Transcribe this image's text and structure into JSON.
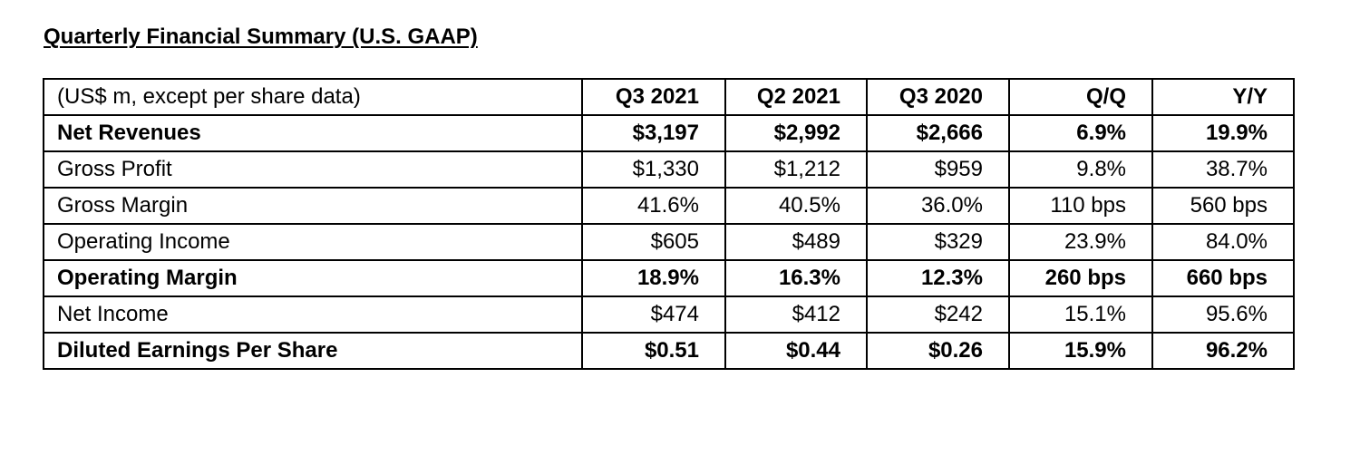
{
  "title": "Quarterly Financial Summary (U.S. GAAP)",
  "table": {
    "header": [
      "(US$ m, except per share data)",
      "Q3 2021",
      "Q2 2021",
      "Q3 2020",
      "Q/Q",
      "Y/Y"
    ],
    "rows": [
      {
        "label": "Net Revenues",
        "bold": true,
        "values": [
          "$3,197",
          "$2,992",
          "$2,666",
          "6.9%",
          "19.9%"
        ]
      },
      {
        "label": "Gross Profit",
        "bold": false,
        "values": [
          "$1,330",
          "$1,212",
          "$959",
          "9.8%",
          "38.7%"
        ]
      },
      {
        "label": "Gross Margin",
        "bold": false,
        "values": [
          "41.6%",
          "40.5%",
          "36.0%",
          "110 bps",
          "560 bps"
        ]
      },
      {
        "label": "Operating Income",
        "bold": false,
        "values": [
          "$605",
          "$489",
          "$329",
          "23.9%",
          "84.0%"
        ]
      },
      {
        "label": "Operating Margin",
        "bold": true,
        "values": [
          "18.9%",
          "16.3%",
          "12.3%",
          "260 bps",
          "660 bps"
        ]
      },
      {
        "label": "Net Income",
        "bold": false,
        "values": [
          "$474",
          "$412",
          "$242",
          "15.1%",
          "95.6%"
        ]
      },
      {
        "label": "Diluted Earnings Per Share",
        "bold": true,
        "values": [
          "$0.51",
          "$0.44",
          "$0.26",
          "15.9%",
          "96.2%"
        ]
      }
    ]
  }
}
